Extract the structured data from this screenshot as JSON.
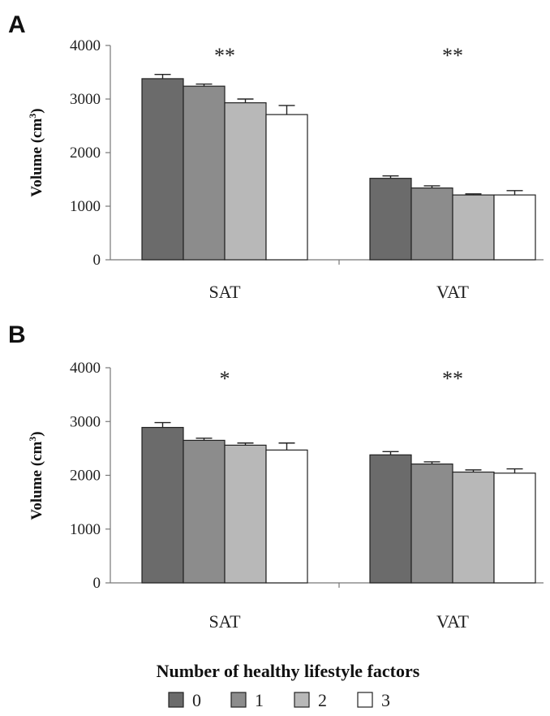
{
  "chart_data": [
    {
      "panel": "A",
      "type": "bar",
      "categories": [
        "SAT",
        "VAT"
      ],
      "ylabel": "Volume (cm",
      "ylabel_superscript": "3",
      "ylabel_suffix": ")",
      "ylim": [
        0,
        4000
      ],
      "yticks": [
        "0",
        "1000",
        "2000",
        "3000",
        "4000"
      ],
      "significance": [
        "**",
        "**"
      ],
      "series": [
        {
          "name": "0",
          "values": [
            3380,
            1520
          ],
          "errors": [
            80,
            45
          ]
        },
        {
          "name": "1",
          "values": [
            3240,
            1340
          ],
          "errors": [
            40,
            40
          ]
        },
        {
          "name": "2",
          "values": [
            2930,
            1210
          ],
          "errors": [
            70,
            20
          ]
        },
        {
          "name": "3",
          "values": [
            2710,
            1210
          ],
          "errors": [
            170,
            80
          ]
        }
      ]
    },
    {
      "panel": "B",
      "type": "bar",
      "categories": [
        "SAT",
        "VAT"
      ],
      "ylabel": "Volume (cm",
      "ylabel_superscript": "3",
      "ylabel_suffix": ")",
      "ylim": [
        0,
        4000
      ],
      "yticks": [
        "0",
        "1000",
        "2000",
        "3000",
        "4000"
      ],
      "significance": [
        "*",
        "**"
      ],
      "series": [
        {
          "name": "0",
          "values": [
            2890,
            2380
          ],
          "errors": [
            90,
            60
          ]
        },
        {
          "name": "1",
          "values": [
            2650,
            2210
          ],
          "errors": [
            40,
            40
          ]
        },
        {
          "name": "2",
          "values": [
            2560,
            2060
          ],
          "errors": [
            40,
            40
          ]
        },
        {
          "name": "3",
          "values": [
            2470,
            2040
          ],
          "errors": [
            130,
            80
          ]
        }
      ]
    }
  ],
  "legend": {
    "title": "Number of healthy lifestyle factors",
    "entries": [
      "0",
      "1",
      "2",
      "3"
    ]
  },
  "colors": {
    "series": [
      "#6b6b6b",
      "#8c8c8c",
      "#b8b8b8",
      "#ffffff"
    ]
  }
}
